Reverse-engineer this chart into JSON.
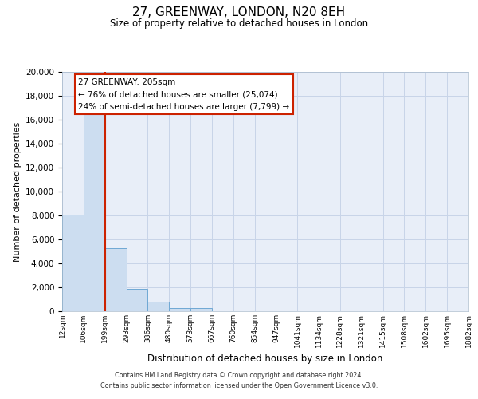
{
  "title": "27, GREENWAY, LONDON, N20 8EH",
  "subtitle": "Size of property relative to detached houses in London",
  "xlabel": "Distribution of detached houses by size in London",
  "ylabel": "Number of detached properties",
  "bar_values": [
    8100,
    16600,
    5300,
    1850,
    800,
    280,
    280,
    0,
    0,
    0,
    0,
    0,
    0,
    0,
    0,
    0,
    0,
    0,
    0
  ],
  "bin_labels": [
    "12sqm",
    "106sqm",
    "199sqm",
    "293sqm",
    "386sqm",
    "480sqm",
    "573sqm",
    "667sqm",
    "760sqm",
    "854sqm",
    "947sqm",
    "1041sqm",
    "1134sqm",
    "1228sqm",
    "1321sqm",
    "1415sqm",
    "1508sqm",
    "1602sqm",
    "1695sqm",
    "1882sqm"
  ],
  "bar_color": "#ccddf0",
  "bar_edgecolor": "#6fa8d4",
  "vline_x": 2,
  "vline_color": "#cc2200",
  "annotation_line1": "27 GREENWAY: 205sqm",
  "annotation_line2": "← 76% of detached houses are smaller (25,074)",
  "annotation_line3": "24% of semi-detached houses are larger (7,799) →",
  "ylim": [
    0,
    20000
  ],
  "yticks": [
    0,
    2000,
    4000,
    6000,
    8000,
    10000,
    12000,
    14000,
    16000,
    18000,
    20000
  ],
  "grid_color": "#c8d4e8",
  "background_color": "#e8eef8",
  "footer_line1": "Contains HM Land Registry data © Crown copyright and database right 2024.",
  "footer_line2": "Contains public sector information licensed under the Open Government Licence v3.0."
}
